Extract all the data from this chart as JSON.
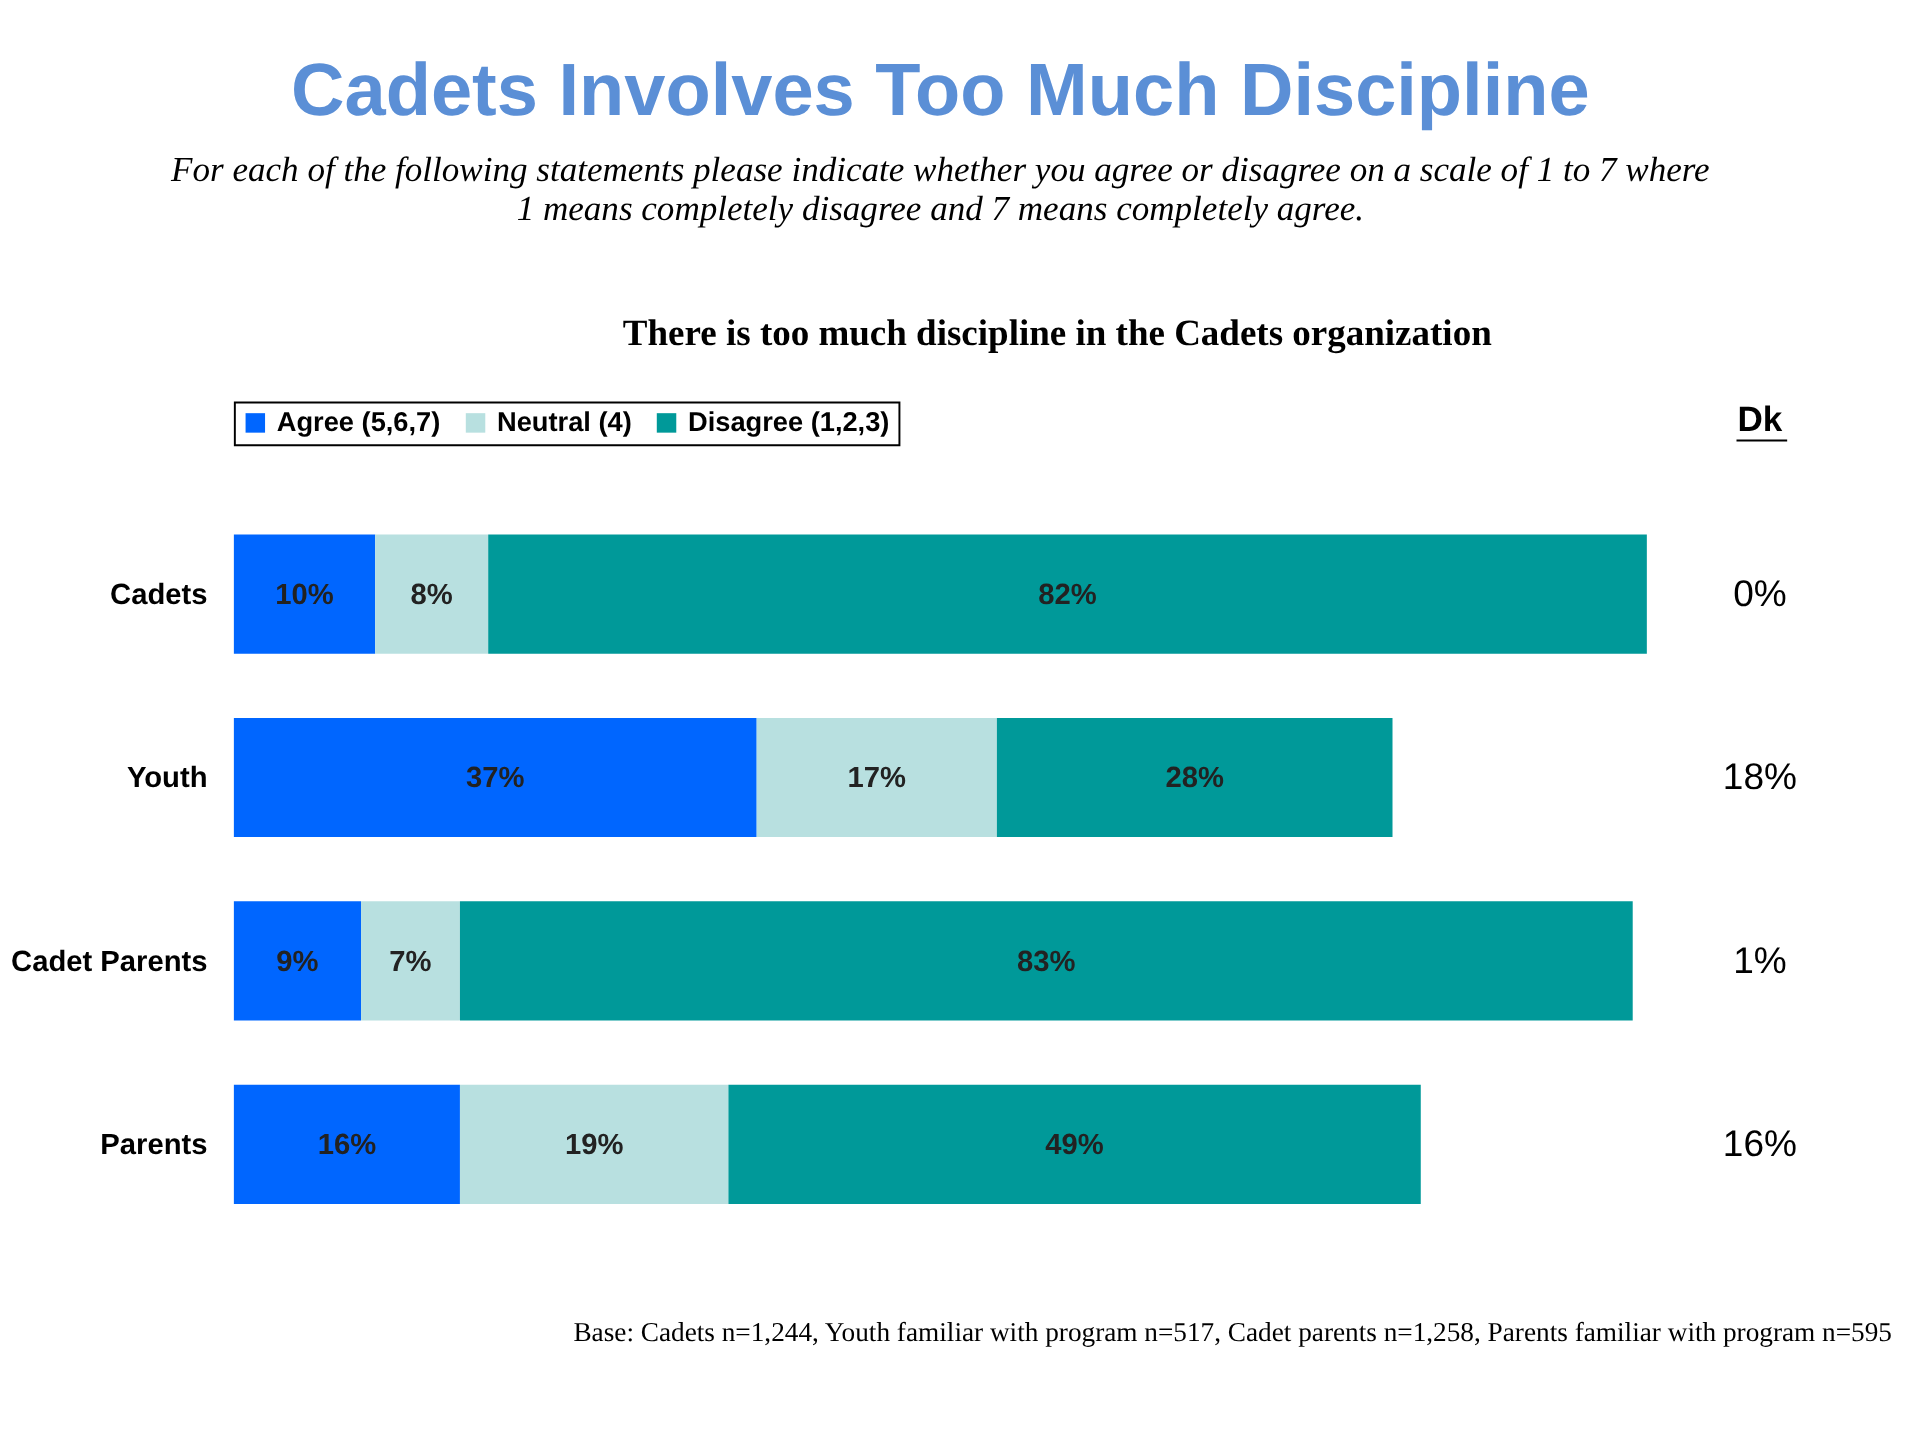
{
  "chart_data": {
    "type": "bar",
    "orientation": "horizontal",
    "stacked": true,
    "title": "Cadets Involves Too Much Discipline",
    "subtitle": [
      "For each of the following statements please indicate whether you agree or disagree on a scale of 1 to 7 where",
      "1 means completely disagree and 7 means completely agree."
    ],
    "categories": [
      "Cadets",
      "Youth",
      "Cadet Parents",
      "Parents"
    ],
    "series": [
      {
        "name": "Agree (5,6,7)",
        "color": "#0066ff",
        "values": [
          10,
          37,
          9,
          16
        ],
        "value_labels": [
          "10%",
          "37%",
          "9%",
          "16%"
        ]
      },
      {
        "name": "Neutral (4)",
        "color": "#b8e0e0",
        "values": [
          8,
          17,
          7,
          19
        ],
        "value_labels": [
          "8%",
          "17%",
          "7%",
          "19%"
        ]
      },
      {
        "name": "Disagree (1,2,3)",
        "color": "#009999",
        "values": [
          82,
          28,
          83,
          49
        ],
        "value_labels": [
          "82%",
          "28%",
          "83%",
          "49%"
        ]
      }
    ],
    "xlim": [
      0,
      100
    ],
    "tick_labels": false,
    "legend": "top",
    "annotations": [
      "There is too much discipline in the Cadets organization",
      "Dk",
      "0%",
      "18%",
      "1%",
      "16%",
      "Base: Cadets n=1,244, Youth familiar with program  n=517, Cadet parents n=1,258, Parents familiar with program n=595"
    ]
  }
}
